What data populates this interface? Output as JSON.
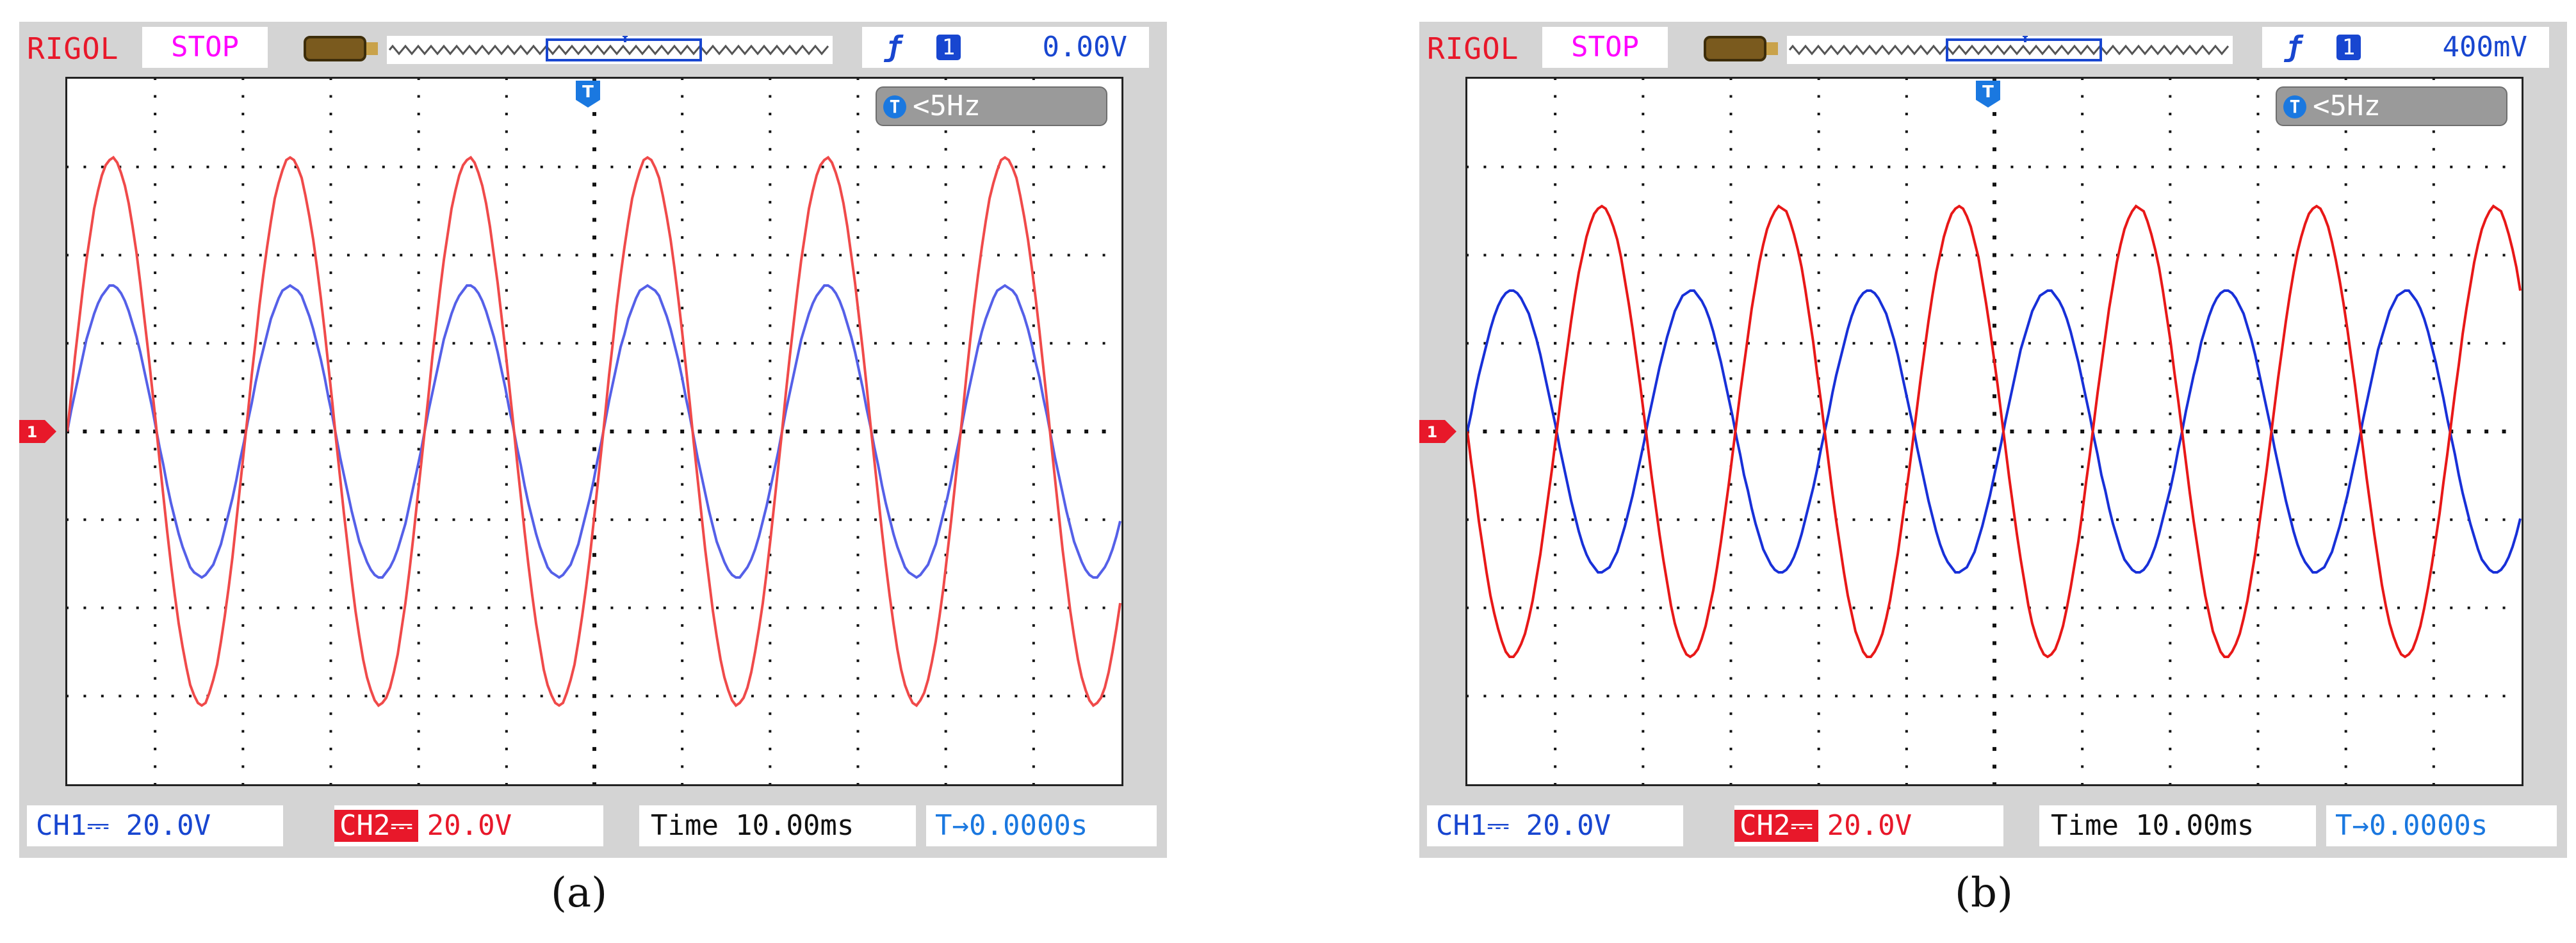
{
  "panels": [
    {
      "id": "a",
      "label": "(a)",
      "brand": "RIGOL",
      "status": "STOP",
      "trigger": {
        "slope_symbol": "ƒ",
        "source": "1",
        "level": "0.00V"
      },
      "trigger_status": {
        "icon": "T",
        "text": "<5Hz"
      },
      "ch1": {
        "label": "CH1",
        "coupling": "⎓",
        "scale": "20.0V"
      },
      "ch2": {
        "label": "CH2",
        "coupling": "⎓",
        "scale": "20.0V"
      },
      "time": {
        "label": "Time",
        "value": "10.00ms"
      },
      "trigger_pos": {
        "text": "T→0.0000s"
      },
      "waves": {
        "ch1_color": "#5560e8",
        "ch2_color": "#f04a4a",
        "cycles_visible": 5.9,
        "ch1_amp_div": 1.65,
        "ch2_amp_div": 3.1,
        "ch2_phase_shift_deg": 0
      }
    },
    {
      "id": "b",
      "label": "(b)",
      "brand": "RIGOL",
      "status": "STOP",
      "trigger": {
        "slope_symbol": "ƒ",
        "source": "1",
        "level": "400mV"
      },
      "trigger_status": {
        "icon": "T",
        "text": "<5Hz"
      },
      "ch1": {
        "label": "CH1",
        "coupling": "⎓",
        "scale": "20.0V"
      },
      "ch2": {
        "label": "CH2",
        "coupling": "⎓",
        "scale": "20.0V"
      },
      "time": {
        "label": "Time",
        "value": "10.00ms"
      },
      "trigger_pos": {
        "text": "T→0.0000s"
      },
      "waves": {
        "ch1_color": "#1830d8",
        "ch2_color": "#e81818",
        "cycles_visible": 5.9,
        "ch1_amp_div": 1.6,
        "ch2_amp_div": 2.55,
        "ch2_phase_shift_deg": 180
      }
    }
  ],
  "colors": {
    "frame": "#d4d4d4",
    "grid_dots": "#111111",
    "brand_red": "#e8182a",
    "stop_magenta": "#ff00ff",
    "trigger_blue": "#1846d0"
  }
}
